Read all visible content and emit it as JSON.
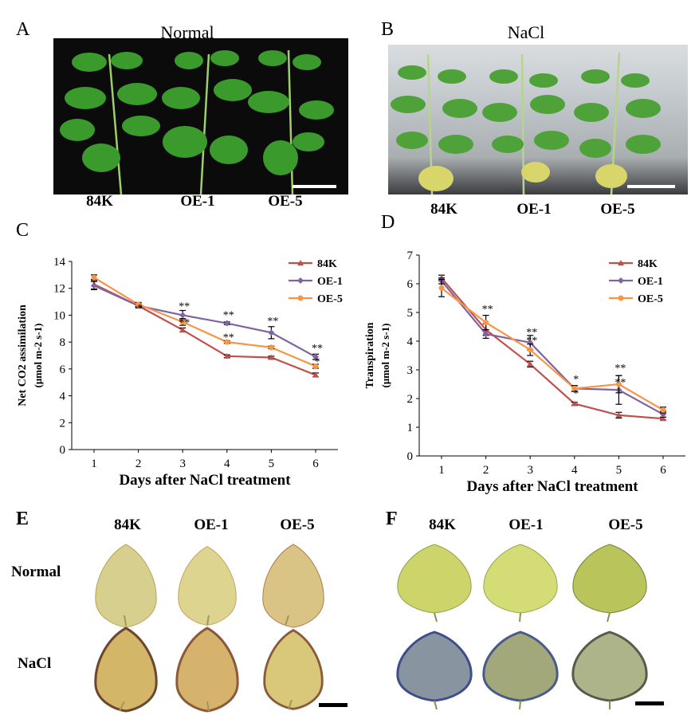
{
  "panels": {
    "A": {
      "letter": "A",
      "title": "Normal",
      "labels": [
        "84K",
        "OE-1",
        "OE-5"
      ]
    },
    "B": {
      "letter": "B",
      "title": "NaCl",
      "labels": [
        "84K",
        "OE-1",
        "OE-5"
      ]
    },
    "C": {
      "letter": "C"
    },
    "D": {
      "letter": "D"
    },
    "E": {
      "letter": "E",
      "columns": [
        "84K",
        "OE-1",
        "OE-5"
      ],
      "rows": [
        "Normal",
        "NaCl"
      ]
    },
    "F": {
      "letter": "F",
      "columns": [
        "84K",
        "OE-1",
        "OE-5"
      ]
    }
  },
  "colors": {
    "84K": "#c0504d",
    "OE-1": "#8064a2",
    "OE-5": "#f79646"
  },
  "chart_data": [
    {
      "id": "C",
      "type": "line",
      "x": [
        1,
        2,
        3,
        4,
        5,
        6
      ],
      "xlabel": "Days after NaCl treatment",
      "ylabel_line1": "Net CO2 assimilation",
      "ylabel_line2": "(μmol m-2 s-1)",
      "ylim": [
        0,
        14
      ],
      "yticks": [
        0,
        2,
        4,
        6,
        8,
        10,
        12,
        14
      ],
      "legend": "top-right",
      "series": [
        {
          "name": "84K",
          "marker": "triangle",
          "values": [
            12.3,
            10.7,
            8.9,
            6.95,
            6.85,
            5.55
          ],
          "errors": [
            0.35,
            0.15,
            0.15,
            0.1,
            0.1,
            0.15
          ]
        },
        {
          "name": "OE-1",
          "marker": "diamond",
          "values": [
            12.2,
            10.7,
            10.0,
            9.4,
            8.7,
            6.9
          ],
          "errors": [
            0.3,
            0.15,
            0.35,
            0.1,
            0.45,
            0.2
          ]
        },
        {
          "name": "OE-5",
          "marker": "circle",
          "values": [
            12.8,
            10.8,
            9.5,
            8.0,
            7.6,
            6.2
          ],
          "errors": [
            0.2,
            0.15,
            0.25,
            0.1,
            0.1,
            0.15
          ]
        }
      ],
      "annotations": [
        {
          "x": 2,
          "y": 10.3,
          "text": "*"
        },
        {
          "x": 3,
          "y": 10.4,
          "text": "**"
        },
        {
          "x": 3,
          "y": 9.2,
          "text": "**"
        },
        {
          "x": 4,
          "y": 9.75,
          "text": "**"
        },
        {
          "x": 4,
          "y": 8.1,
          "text": "**"
        },
        {
          "x": 5,
          "y": 9.3,
          "text": "**"
        },
        {
          "x": 6,
          "y": 7.3,
          "text": "**"
        },
        {
          "x": 6,
          "y": 6.3,
          "text": "*"
        }
      ]
    },
    {
      "id": "D",
      "type": "line",
      "x": [
        1,
        2,
        3,
        4,
        5,
        6
      ],
      "xlabel": "Days after NaCl treatment",
      "ylabel_line1": "Transpiration",
      "ylabel_line2": "(μmol m-2 s-1)",
      "ylim": [
        0,
        7
      ],
      "yticks": [
        0,
        1,
        2,
        3,
        4,
        5,
        6,
        7
      ],
      "legend": "top-right",
      "series": [
        {
          "name": "84K",
          "marker": "triangle",
          "values": [
            6.2,
            4.4,
            3.2,
            1.82,
            1.42,
            1.3
          ],
          "errors": [
            0.1,
            0.2,
            0.1,
            0.05,
            0.1,
            0.05
          ]
        },
        {
          "name": "OE-1",
          "marker": "diamond",
          "values": [
            6.1,
            4.25,
            3.95,
            2.35,
            2.3,
            1.45
          ],
          "errors": [
            0.1,
            0.15,
            0.25,
            0.1,
            0.5,
            0.1
          ]
        },
        {
          "name": "OE-5",
          "marker": "circle",
          "values": [
            5.85,
            4.65,
            3.7,
            2.35,
            2.5,
            1.6
          ],
          "errors": [
            0.3,
            0.25,
            0.2,
            0.1,
            0.3,
            0.1
          ]
        }
      ],
      "annotations": [
        {
          "x": 2,
          "y": 5.0,
          "text": "**"
        },
        {
          "x": 3,
          "y": 4.2,
          "text": "**"
        },
        {
          "x": 3,
          "y": 3.9,
          "text": "**"
        },
        {
          "x": 4,
          "y": 2.55,
          "text": "*"
        },
        {
          "x": 4,
          "y": 2.05,
          "text": "*"
        },
        {
          "x": 5,
          "y": 2.95,
          "text": "**"
        },
        {
          "x": 5,
          "y": 2.45,
          "text": "**"
        }
      ]
    }
  ]
}
